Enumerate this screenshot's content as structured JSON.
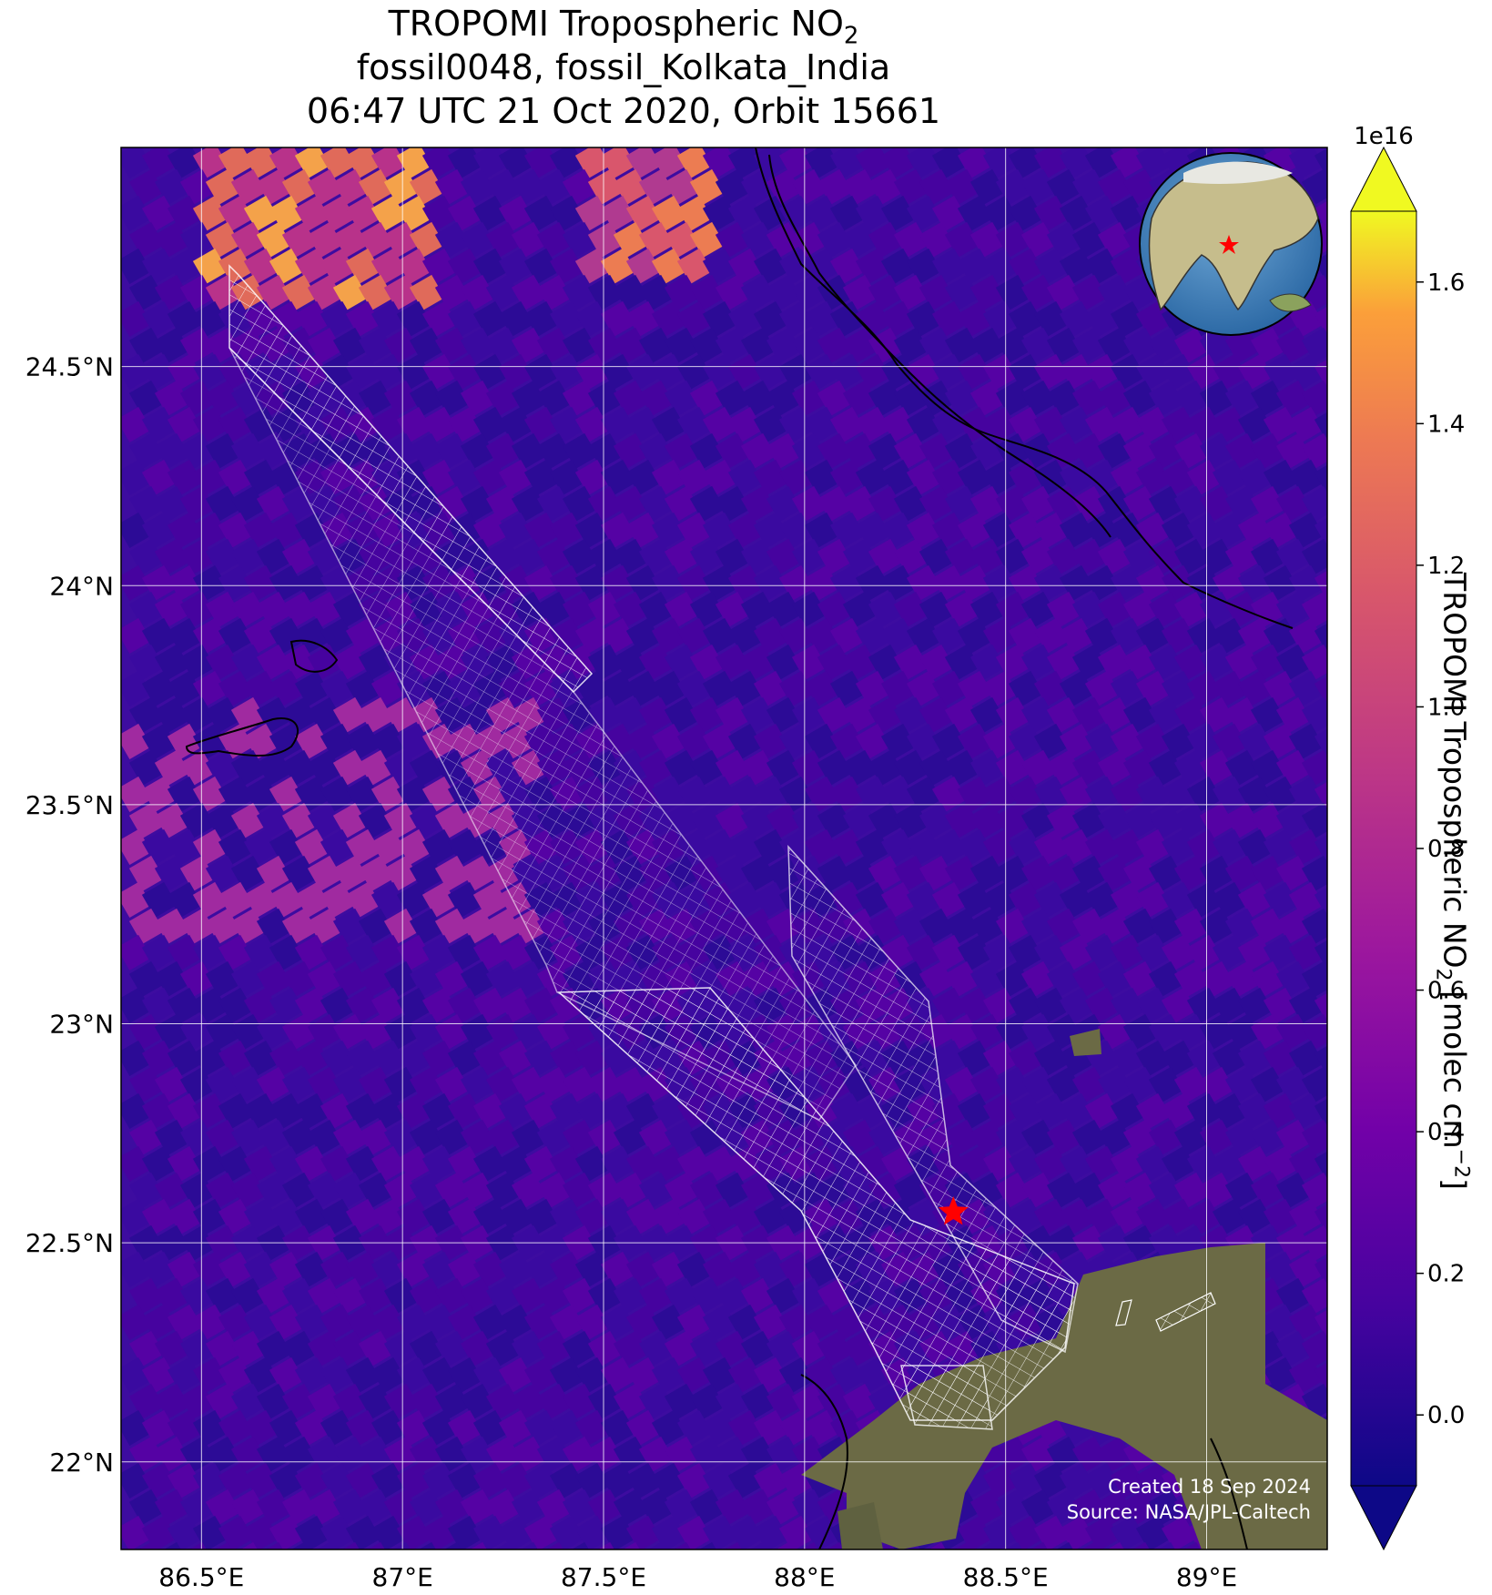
{
  "title": {
    "line1": "TROPOMI Tropospheric NO",
    "line1_sub": "2",
    "line2": "fossil0048, fossil_Kolkata_India",
    "line3": "06:47 UTC 21 Oct 2020, Orbit 15661"
  },
  "map": {
    "lon_range": [
      86.3,
      89.3
    ],
    "lat_range": [
      21.8,
      25.0
    ],
    "lon_ticks": [
      86.5,
      87.0,
      87.5,
      88.0,
      88.5,
      89.0
    ],
    "lon_tick_labels": [
      "86.5°E",
      "87°E",
      "87.5°E",
      "88°E",
      "88.5°E",
      "89°E"
    ],
    "lat_ticks": [
      22.0,
      22.5,
      23.0,
      23.5,
      24.0,
      24.5
    ],
    "lat_tick_labels": [
      "22°N",
      "22.5°N",
      "23°N",
      "23.5°N",
      "24°N",
      "24.5°N"
    ],
    "grid": true,
    "target": {
      "lon": 88.37,
      "lat": 22.57,
      "marker": "red-star"
    },
    "inset": {
      "type": "globe",
      "position": "top-right",
      "marker": "red-star"
    },
    "credit": {
      "line1": "Created 18 Sep 2024",
      "line2": "Source: NASA/JPL-Caltech"
    }
  },
  "colorbar": {
    "label_prefix": "TROPOMI Tropospheric NO",
    "label_sub": "2",
    "label_mid": " [molec cm",
    "label_sup": "−2",
    "label_suffix": "]",
    "multiplier": "1e16",
    "range": [
      -0.1,
      1.7
    ],
    "ticks": [
      0.0,
      0.2,
      0.4,
      0.6,
      0.8,
      1.0,
      1.2,
      1.4,
      1.6
    ],
    "tick_labels": [
      "0.0",
      "0.2",
      "0.4",
      "0.6",
      "0.8",
      "1.0",
      "1.2",
      "1.4",
      "1.6"
    ],
    "colormap": "plasma",
    "extend": "both"
  },
  "colors": {
    "background_field": "#3d0ca0",
    "grid": "#ffffff",
    "target": "#ff0000",
    "swath": "#ffffff",
    "land_imagery": "#6b6a45"
  }
}
